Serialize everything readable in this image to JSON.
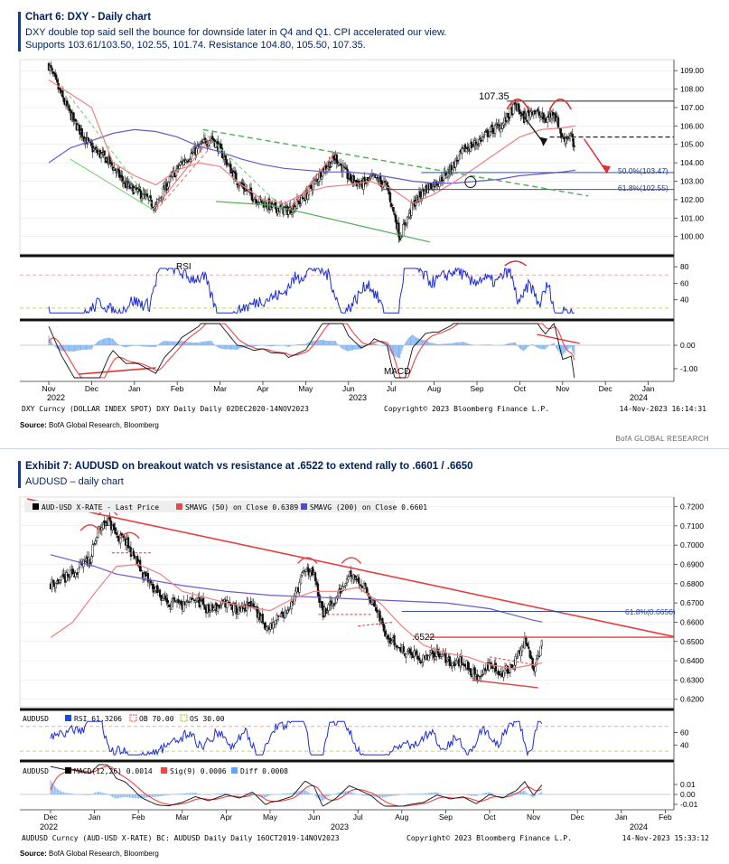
{
  "chart1": {
    "heading": "Chart 6: DXY - Daily chart",
    "sub1": "DXY double top said sell the bounce for downside later in Q4 and Q1. CPI accelerated our view.",
    "sub2": "Supports 103.61/103.50, 102.55, 101.74. Resistance 104.80, 105.50, 107.35.",
    "peak_label": "107.35",
    "fib50": "50.0%(103.47)",
    "fib618": "61.8%(102.55)",
    "rsi_label": "RSI",
    "macd_label": "MACD",
    "yticks": [
      "109.00",
      "108.00",
      "107.00",
      "106.00",
      "105.00",
      "104.00",
      "103.00",
      "102.00",
      "101.00",
      "100.00"
    ],
    "rsi_ticks": [
      "80",
      "60",
      "40"
    ],
    "macd_ticks": [
      "0.00",
      "-1.00"
    ],
    "months": [
      "Nov",
      "Dec",
      "Jan",
      "Feb",
      "Mar",
      "Apr",
      "May",
      "Jun",
      "Jul",
      "Aug",
      "Sep",
      "Oct",
      "Nov",
      "Dec",
      "Jan"
    ],
    "year1": "2022",
    "year2": "2023",
    "year3": "2024",
    "footer_left": "DXY Curncy (DOLLAR INDEX SPOT) DXY Daily  Daily 02DEC2020-14NOV2023",
    "footer_mid": "Copyright© 2023 Bloomberg Finance L.P.",
    "footer_right": "14-Nov-2023 16:14:31",
    "source_label": "Source:",
    "source_text": " BofA Global Research, Bloomberg",
    "brand": "BofA GLOBAL RESEARCH"
  },
  "chart2": {
    "heading": "Exhibit 7: AUDUSD on breakout watch vs resistance at .6522 to extend rally to .6601 / .6650",
    "sub1": "AUDUSD – daily chart",
    "legend_price": "AUD-USD X-RATE - Last Price",
    "legend_sma50": "SMAVG (50)  on Close 0.6389",
    "legend_sma200": "SMAVG (200)  on Close 0.6601",
    "peak_label": ".6522",
    "fib618": "61.8%(0.6656)",
    "yticks": [
      "0.7200",
      "0.7100",
      "0.7000",
      "0.6900",
      "0.6800",
      "0.6700",
      "0.6600",
      "0.6500",
      "0.6400",
      "0.6300",
      "0.6200"
    ],
    "rsi_legend": [
      "AUDUSD",
      "RSI 61.3206",
      "OB 70.00",
      "OS 30.00"
    ],
    "rsi_ticks": [
      "60",
      "40"
    ],
    "macd_legend": [
      "AUDUSD",
      "MACD(12,26) 0.0014",
      "Sig(9) 0.0006",
      "Diff 0.0008"
    ],
    "macd_ticks": [
      "0.01",
      "0.00",
      "-0.01"
    ],
    "months": [
      "Dec",
      "Jan",
      "Feb",
      "Mar",
      "Apr",
      "May",
      "Jun",
      "Jul",
      "Aug",
      "Sep",
      "Oct",
      "Nov",
      "Dec",
      "Jan",
      "Feb"
    ],
    "year1": "2022",
    "year2": "2023",
    "year3": "2024",
    "footer_left": "AUDUSD Curncy (AUD-USD X-RATE) BC: AUDUSD Daily  Daily 16OCT2019-14NOV2023",
    "footer_mid": "Copyright© 2023 Bloomberg Finance L.P.",
    "footer_right": "14-Nov-2023 15:33:12",
    "source_label": "Source:",
    "source_text": " BofA Global Research, Bloomberg"
  },
  "chart_data": [
    {
      "type": "line",
      "title": "Chart 6: DXY - Daily chart",
      "ylim": [
        99.2,
        109.5
      ],
      "months": [
        "Nov",
        "Dec",
        "Jan",
        "Feb",
        "Mar",
        "Apr",
        "May",
        "Jun",
        "Jul",
        "Aug",
        "Sep",
        "Oct",
        "Nov",
        "Dec",
        "Jan"
      ],
      "price_path": [
        [
          0,
          109.3
        ],
        [
          0.3,
          107.6
        ],
        [
          0.6,
          106.2
        ],
        [
          1,
          104.8
        ],
        [
          1.4,
          104.1
        ],
        [
          1.8,
          102.8
        ],
        [
          2.1,
          102.4
        ],
        [
          2.5,
          101.6
        ],
        [
          2.7,
          102.6
        ],
        [
          3.1,
          104.0
        ],
        [
          3.5,
          104.8
        ],
        [
          3.8,
          105.4
        ],
        [
          4.0,
          104.7
        ],
        [
          4.4,
          103.0
        ],
        [
          4.8,
          102.1
        ],
        [
          5.2,
          101.6
        ],
        [
          5.6,
          101.4
        ],
        [
          6.0,
          102.2
        ],
        [
          6.4,
          103.6
        ],
        [
          6.7,
          104.3
        ],
        [
          7.0,
          103.2
        ],
        [
          7.3,
          102.8
        ],
        [
          7.6,
          103.2
        ],
        [
          7.9,
          102.7
        ],
        [
          8.2,
          100.0
        ],
        [
          8.5,
          101.7
        ],
        [
          8.8,
          102.6
        ],
        [
          9.1,
          103.0
        ],
        [
          9.4,
          103.7
        ],
        [
          9.7,
          104.7
        ],
        [
          10.0,
          105.1
        ],
        [
          10.3,
          105.7
        ],
        [
          10.6,
          106.1
        ],
        [
          10.9,
          107.1
        ],
        [
          11.1,
          106.4
        ],
        [
          11.3,
          106.9
        ],
        [
          11.6,
          106.3
        ],
        [
          11.8,
          106.8
        ],
        [
          12.0,
          105.3
        ],
        [
          12.2,
          105.5
        ],
        [
          12.3,
          104.3
        ]
      ],
      "sma50": [
        [
          0,
          108.5
        ],
        [
          1,
          107.0
        ],
        [
          1.5,
          104.0
        ],
        [
          2,
          103.3
        ],
        [
          2.5,
          102.8
        ],
        [
          3,
          103.6
        ],
        [
          3.5,
          104.0
        ],
        [
          4,
          103.8
        ],
        [
          4.5,
          102.8
        ],
        [
          5,
          102.0
        ],
        [
          5.5,
          101.8
        ],
        [
          6,
          102.4
        ],
        [
          6.5,
          102.7
        ],
        [
          7,
          102.8
        ],
        [
          7.5,
          103.0
        ],
        [
          8,
          102.6
        ],
        [
          8.5,
          101.8
        ],
        [
          9,
          102.3
        ],
        [
          9.5,
          103.0
        ],
        [
          10,
          103.8
        ],
        [
          10.5,
          104.6
        ],
        [
          11,
          105.4
        ],
        [
          11.5,
          105.8
        ],
        [
          12,
          105.9
        ],
        [
          12.3,
          106.0
        ]
      ],
      "sma200": [
        [
          0,
          104.0
        ],
        [
          0.5,
          104.8
        ],
        [
          1,
          105.2
        ],
        [
          1.5,
          105.6
        ],
        [
          2,
          105.8
        ],
        [
          2.5,
          105.7
        ],
        [
          3,
          105.4
        ],
        [
          3.5,
          104.9
        ],
        [
          4,
          104.6
        ],
        [
          4.5,
          104.2
        ],
        [
          5,
          103.9
        ],
        [
          5.5,
          103.7
        ],
        [
          6,
          103.6
        ],
        [
          6.5,
          103.5
        ],
        [
          7,
          103.5
        ],
        [
          7.5,
          103.4
        ],
        [
          8,
          103.2
        ],
        [
          8.5,
          103.0
        ],
        [
          9,
          102.9
        ],
        [
          9.5,
          102.9
        ],
        [
          10,
          103.0
        ],
        [
          10.5,
          103.1
        ],
        [
          11,
          103.3
        ],
        [
          11.5,
          103.4
        ],
        [
          12,
          103.5
        ],
        [
          12.3,
          103.6
        ]
      ],
      "levels": [
        {
          "name": "107.35",
          "value": 107.35
        },
        {
          "name": "50.0%(103.47)",
          "value": 103.47
        },
        {
          "name": "61.8%(102.55)",
          "value": 102.55
        }
      ],
      "rsi_ticks": [
        80,
        60,
        40
      ],
      "macd_ticks": [
        0.0,
        -1.0
      ]
    },
    {
      "type": "line",
      "title": "Exhibit 7: AUDUSD on breakout watch vs resistance at .6522 to extend rally to .6601 / .6650",
      "ylim": [
        0.618,
        0.724
      ],
      "months": [
        "Dec",
        "Jan",
        "Feb",
        "Mar",
        "Apr",
        "May",
        "Jun",
        "Jul",
        "Aug",
        "Sep",
        "Oct",
        "Nov",
        "Dec",
        "Jan",
        "Feb"
      ],
      "price_path": [
        [
          0,
          0.68
        ],
        [
          0.3,
          0.682
        ],
        [
          0.6,
          0.687
        ],
        [
          0.9,
          0.693
        ],
        [
          1.1,
          0.708
        ],
        [
          1.3,
          0.713
        ],
        [
          1.5,
          0.705
        ],
        [
          1.7,
          0.702
        ],
        [
          1.9,
          0.694
        ],
        [
          2.1,
          0.685
        ],
        [
          2.4,
          0.676
        ],
        [
          2.7,
          0.67
        ],
        [
          3.0,
          0.668
        ],
        [
          3.3,
          0.672
        ],
        [
          3.6,
          0.666
        ],
        [
          4.0,
          0.67
        ],
        [
          4.3,
          0.665
        ],
        [
          4.6,
          0.67
        ],
        [
          4.9,
          0.656
        ],
        [
          5.2,
          0.662
        ],
        [
          5.5,
          0.67
        ],
        [
          5.8,
          0.688
        ],
        [
          6.0,
          0.684
        ],
        [
          6.2,
          0.664
        ],
        [
          6.5,
          0.672
        ],
        [
          6.8,
          0.686
        ],
        [
          7.0,
          0.683
        ],
        [
          7.3,
          0.672
        ],
        [
          7.6,
          0.656
        ],
        [
          7.9,
          0.647
        ],
        [
          8.2,
          0.644
        ],
        [
          8.5,
          0.64
        ],
        [
          8.8,
          0.645
        ],
        [
          9.1,
          0.639
        ],
        [
          9.4,
          0.64
        ],
        [
          9.7,
          0.631
        ],
        [
          10.0,
          0.638
        ],
        [
          10.3,
          0.633
        ],
        [
          10.6,
          0.64
        ],
        [
          10.8,
          0.65
        ],
        [
          11.0,
          0.637
        ],
        [
          11.2,
          0.649
        ]
      ],
      "sma50": [
        [
          0,
          0.652
        ],
        [
          0.5,
          0.66
        ],
        [
          1,
          0.675
        ],
        [
          1.5,
          0.689
        ],
        [
          2,
          0.69
        ],
        [
          2.5,
          0.685
        ],
        [
          3,
          0.676
        ],
        [
          3.5,
          0.673
        ],
        [
          4,
          0.67
        ],
        [
          4.5,
          0.668
        ],
        [
          5,
          0.666
        ],
        [
          5.5,
          0.672
        ],
        [
          6,
          0.676
        ],
        [
          6.5,
          0.676
        ],
        [
          7,
          0.678
        ],
        [
          7.5,
          0.67
        ],
        [
          8,
          0.658
        ],
        [
          8.5,
          0.648
        ],
        [
          9,
          0.644
        ],
        [
          9.5,
          0.642
        ],
        [
          10,
          0.638
        ],
        [
          10.5,
          0.636
        ],
        [
          11,
          0.638
        ],
        [
          11.2,
          0.6389
        ]
      ],
      "sma200": [
        [
          0,
          0.695
        ],
        [
          1,
          0.689
        ],
        [
          1.5,
          0.685
        ],
        [
          2,
          0.683
        ],
        [
          2.5,
          0.681
        ],
        [
          3,
          0.679
        ],
        [
          4,
          0.676
        ],
        [
          5,
          0.674
        ],
        [
          6,
          0.673
        ],
        [
          7,
          0.672
        ],
        [
          8,
          0.671
        ],
        [
          9,
          0.67
        ],
        [
          10,
          0.667
        ],
        [
          10.5,
          0.664
        ],
        [
          11,
          0.661
        ],
        [
          11.2,
          0.6601
        ]
      ],
      "levels": [
        {
          "name": ".6522",
          "value": 0.6522
        },
        {
          "name": "61.8%(0.6656)",
          "value": 0.6656
        }
      ],
      "rsi_ticks": [
        60,
        40
      ],
      "macd_ticks": [
        0.01,
        0.0,
        -0.01
      ]
    }
  ]
}
